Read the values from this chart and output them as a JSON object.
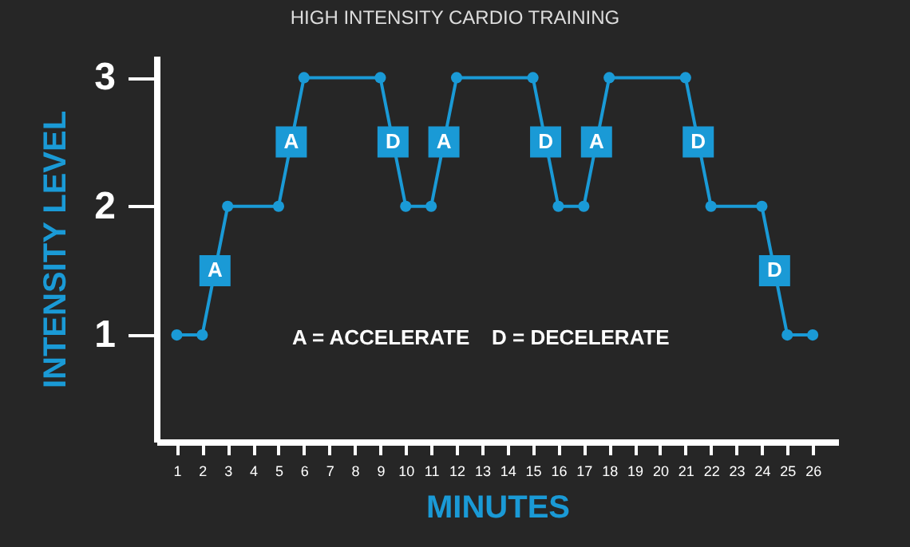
{
  "chart_data": {
    "type": "line",
    "title": "HIGH INTENSITY CARDIO TRAINING",
    "xlabel": "MINUTES",
    "ylabel": "INTENSITY LEVEL",
    "series": [
      {
        "color": "#1a9ad6",
        "x": [
          1,
          2,
          3,
          5,
          6,
          9,
          10,
          11,
          12,
          15,
          16,
          17,
          18,
          21,
          22,
          24,
          25,
          26
        ],
        "values": [
          1,
          1,
          2,
          2,
          3,
          3,
          2,
          2,
          3,
          3,
          2,
          2,
          3,
          3,
          2,
          2,
          1,
          1
        ]
      }
    ],
    "xlim": [
      0.2,
      27
    ],
    "xticks": [
      1,
      2,
      3,
      4,
      5,
      6,
      7,
      8,
      9,
      10,
      11,
      12,
      13,
      14,
      15,
      16,
      17,
      18,
      19,
      20,
      21,
      22,
      23,
      24,
      25,
      26
    ],
    "ylim": [
      0.17,
      3.17
    ],
    "yticks": [
      1,
      2,
      3
    ],
    "marker": "circle",
    "line_style": "solid",
    "grid": false,
    "annotations": [
      {
        "text": "A",
        "x": 2.5,
        "y": 1.5
      },
      {
        "text": "A",
        "x": 5.5,
        "y": 2.5
      },
      {
        "text": "D",
        "x": 9.5,
        "y": 2.5
      },
      {
        "text": "A",
        "x": 11.5,
        "y": 2.5
      },
      {
        "text": "D",
        "x": 15.5,
        "y": 2.5
      },
      {
        "text": "A",
        "x": 17.5,
        "y": 2.5
      },
      {
        "text": "D",
        "x": 21.5,
        "y": 2.5
      },
      {
        "text": "D",
        "x": 24.5,
        "y": 1.5
      },
      "A = ACCELERATE",
      "D = DECELERATE"
    ]
  }
}
